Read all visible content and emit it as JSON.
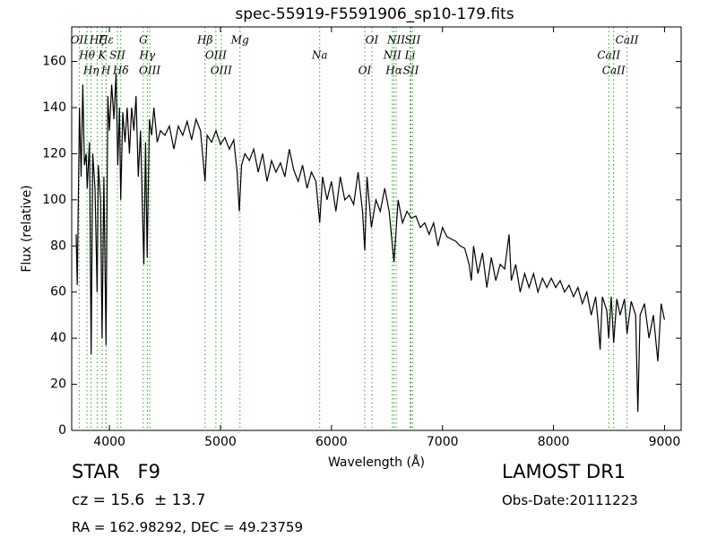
{
  "chart_data": {
    "type": "line",
    "title": "spec-55919-F5591906_sp10-179.fits",
    "x_label": "Wavelength (Å)",
    "y_label": "Flux (relative)",
    "color": "#000000",
    "lines_color": "#2ca02c",
    "xlim": [
      3660,
      9150
    ],
    "ylim": [
      0,
      175
    ],
    "xticks": [
      4000,
      5000,
      6000,
      7000,
      8000,
      9000
    ],
    "yticks": [
      0,
      20,
      40,
      60,
      80,
      100,
      120,
      140,
      160
    ],
    "lines": [
      {
        "label": "OII",
        "x": 3727
      },
      {
        "label": "Hθ",
        "x": 3798
      },
      {
        "label": "Hη",
        "x": 3835
      },
      {
        "label": "Hζ",
        "x": 3889
      },
      {
        "label": "K",
        "x": 3934
      },
      {
        "label": "H",
        "x": 3969
      },
      {
        "label": "Hε",
        "x": 3970
      },
      {
        "label": "SII",
        "x": 4072
      },
      {
        "label": "Hδ",
        "x": 4102
      },
      {
        "label": "G",
        "x": 4305
      },
      {
        "label": "Hγ",
        "x": 4341
      },
      {
        "label": "OIII",
        "x": 4363
      },
      {
        "label": "Hβ",
        "x": 4861
      },
      {
        "label": "OIII",
        "x": 4959
      },
      {
        "label": "OIII",
        "x": 5007
      },
      {
        "label": "Mg",
        "x": 5176
      },
      {
        "label": "Na",
        "x": 5894
      },
      {
        "label": "OI",
        "x": 6300
      },
      {
        "label": "OI",
        "x": 6364
      },
      {
        "label": "NII",
        "x": 6548
      },
      {
        "label": "Hα",
        "x": 6563
      },
      {
        "label": "NII",
        "x": 6583
      },
      {
        "label": "Li",
        "x": 6708
      },
      {
        "label": "SII",
        "x": 6716
      },
      {
        "label": "SII",
        "x": 6731
      },
      {
        "label": "CaII",
        "x": 8498
      },
      {
        "label": "CaII",
        "x": 8542
      },
      {
        "label": "CaII",
        "x": 8662
      }
    ],
    "x": [
      3700,
      3710,
      3730,
      3745,
      3760,
      3775,
      3790,
      3800,
      3820,
      3835,
      3850,
      3870,
      3889,
      3900,
      3920,
      3934,
      3950,
      3969,
      3985,
      4000,
      4020,
      4040,
      4060,
      4075,
      4090,
      4102,
      4120,
      4140,
      4160,
      4180,
      4200,
      4220,
      4240,
      4260,
      4280,
      4300,
      4310,
      4325,
      4340,
      4360,
      4380,
      4400,
      4430,
      4460,
      4500,
      4540,
      4580,
      4620,
      4660,
      4700,
      4740,
      4780,
      4820,
      4861,
      4880,
      4920,
      4960,
      5000,
      5040,
      5080,
      5120,
      5150,
      5170,
      5190,
      5220,
      5260,
      5300,
      5340,
      5380,
      5420,
      5460,
      5500,
      5540,
      5580,
      5620,
      5660,
      5700,
      5740,
      5780,
      5820,
      5860,
      5894,
      5920,
      5960,
      6000,
      6040,
      6080,
      6120,
      6160,
      6200,
      6240,
      6280,
      6300,
      6320,
      6360,
      6400,
      6440,
      6480,
      6520,
      6563,
      6600,
      6640,
      6680,
      6720,
      6760,
      6800,
      6840,
      6880,
      6920,
      6960,
      7000,
      7040,
      7080,
      7120,
      7160,
      7200,
      7240,
      7260,
      7280,
      7320,
      7360,
      7400,
      7440,
      7480,
      7520,
      7560,
      7600,
      7620,
      7660,
      7700,
      7740,
      7780,
      7820,
      7860,
      7900,
      7940,
      7980,
      8020,
      8060,
      8100,
      8140,
      8180,
      8220,
      8260,
      8300,
      8340,
      8380,
      8400,
      8420,
      8440,
      8480,
      8498,
      8520,
      8542,
      8570,
      8600,
      8640,
      8662,
      8700,
      8740,
      8760,
      8780,
      8820,
      8860,
      8900,
      8940,
      8970,
      9000
    ],
    "values": [
      85,
      63,
      140,
      110,
      150,
      115,
      120,
      105,
      125,
      33,
      120,
      105,
      60,
      115,
      100,
      40,
      110,
      37,
      145,
      130,
      150,
      135,
      155,
      115,
      140,
      100,
      138,
      125,
      140,
      120,
      140,
      130,
      145,
      110,
      130,
      90,
      72,
      125,
      75,
      135,
      128,
      140,
      125,
      130,
      128,
      132,
      122,
      132,
      128,
      134,
      126,
      135,
      130,
      108,
      128,
      125,
      130,
      124,
      127,
      122,
      126,
      112,
      95,
      115,
      120,
      117,
      122,
      112,
      120,
      108,
      117,
      112,
      116,
      110,
      122,
      113,
      108,
      115,
      105,
      112,
      108,
      90,
      110,
      100,
      108,
      95,
      110,
      100,
      102,
      98,
      112,
      95,
      78,
      110,
      88,
      100,
      95,
      105,
      95,
      73,
      100,
      90,
      95,
      92,
      93,
      88,
      90,
      85,
      90,
      80,
      88,
      84,
      83,
      82,
      80,
      79,
      72,
      65,
      80,
      68,
      77,
      62,
      75,
      65,
      72,
      70,
      85,
      65,
      72,
      60,
      68,
      62,
      68,
      60,
      66,
      62,
      66,
      62,
      65,
      60,
      63,
      58,
      62,
      55,
      60,
      50,
      58,
      48,
      35,
      58,
      52,
      40,
      58,
      38,
      57,
      50,
      57,
      42,
      56,
      50,
      8,
      50,
      55,
      40,
      50,
      30,
      55,
      48
    ]
  },
  "info": {
    "classification": "STAR   F9",
    "cz": "cz = 15.6  ± 13.7",
    "coords": "RA = 162.98292, DEC = 49.23759",
    "survey": "LAMOST DR1",
    "obs_date": "Obs-Date:20111223"
  }
}
